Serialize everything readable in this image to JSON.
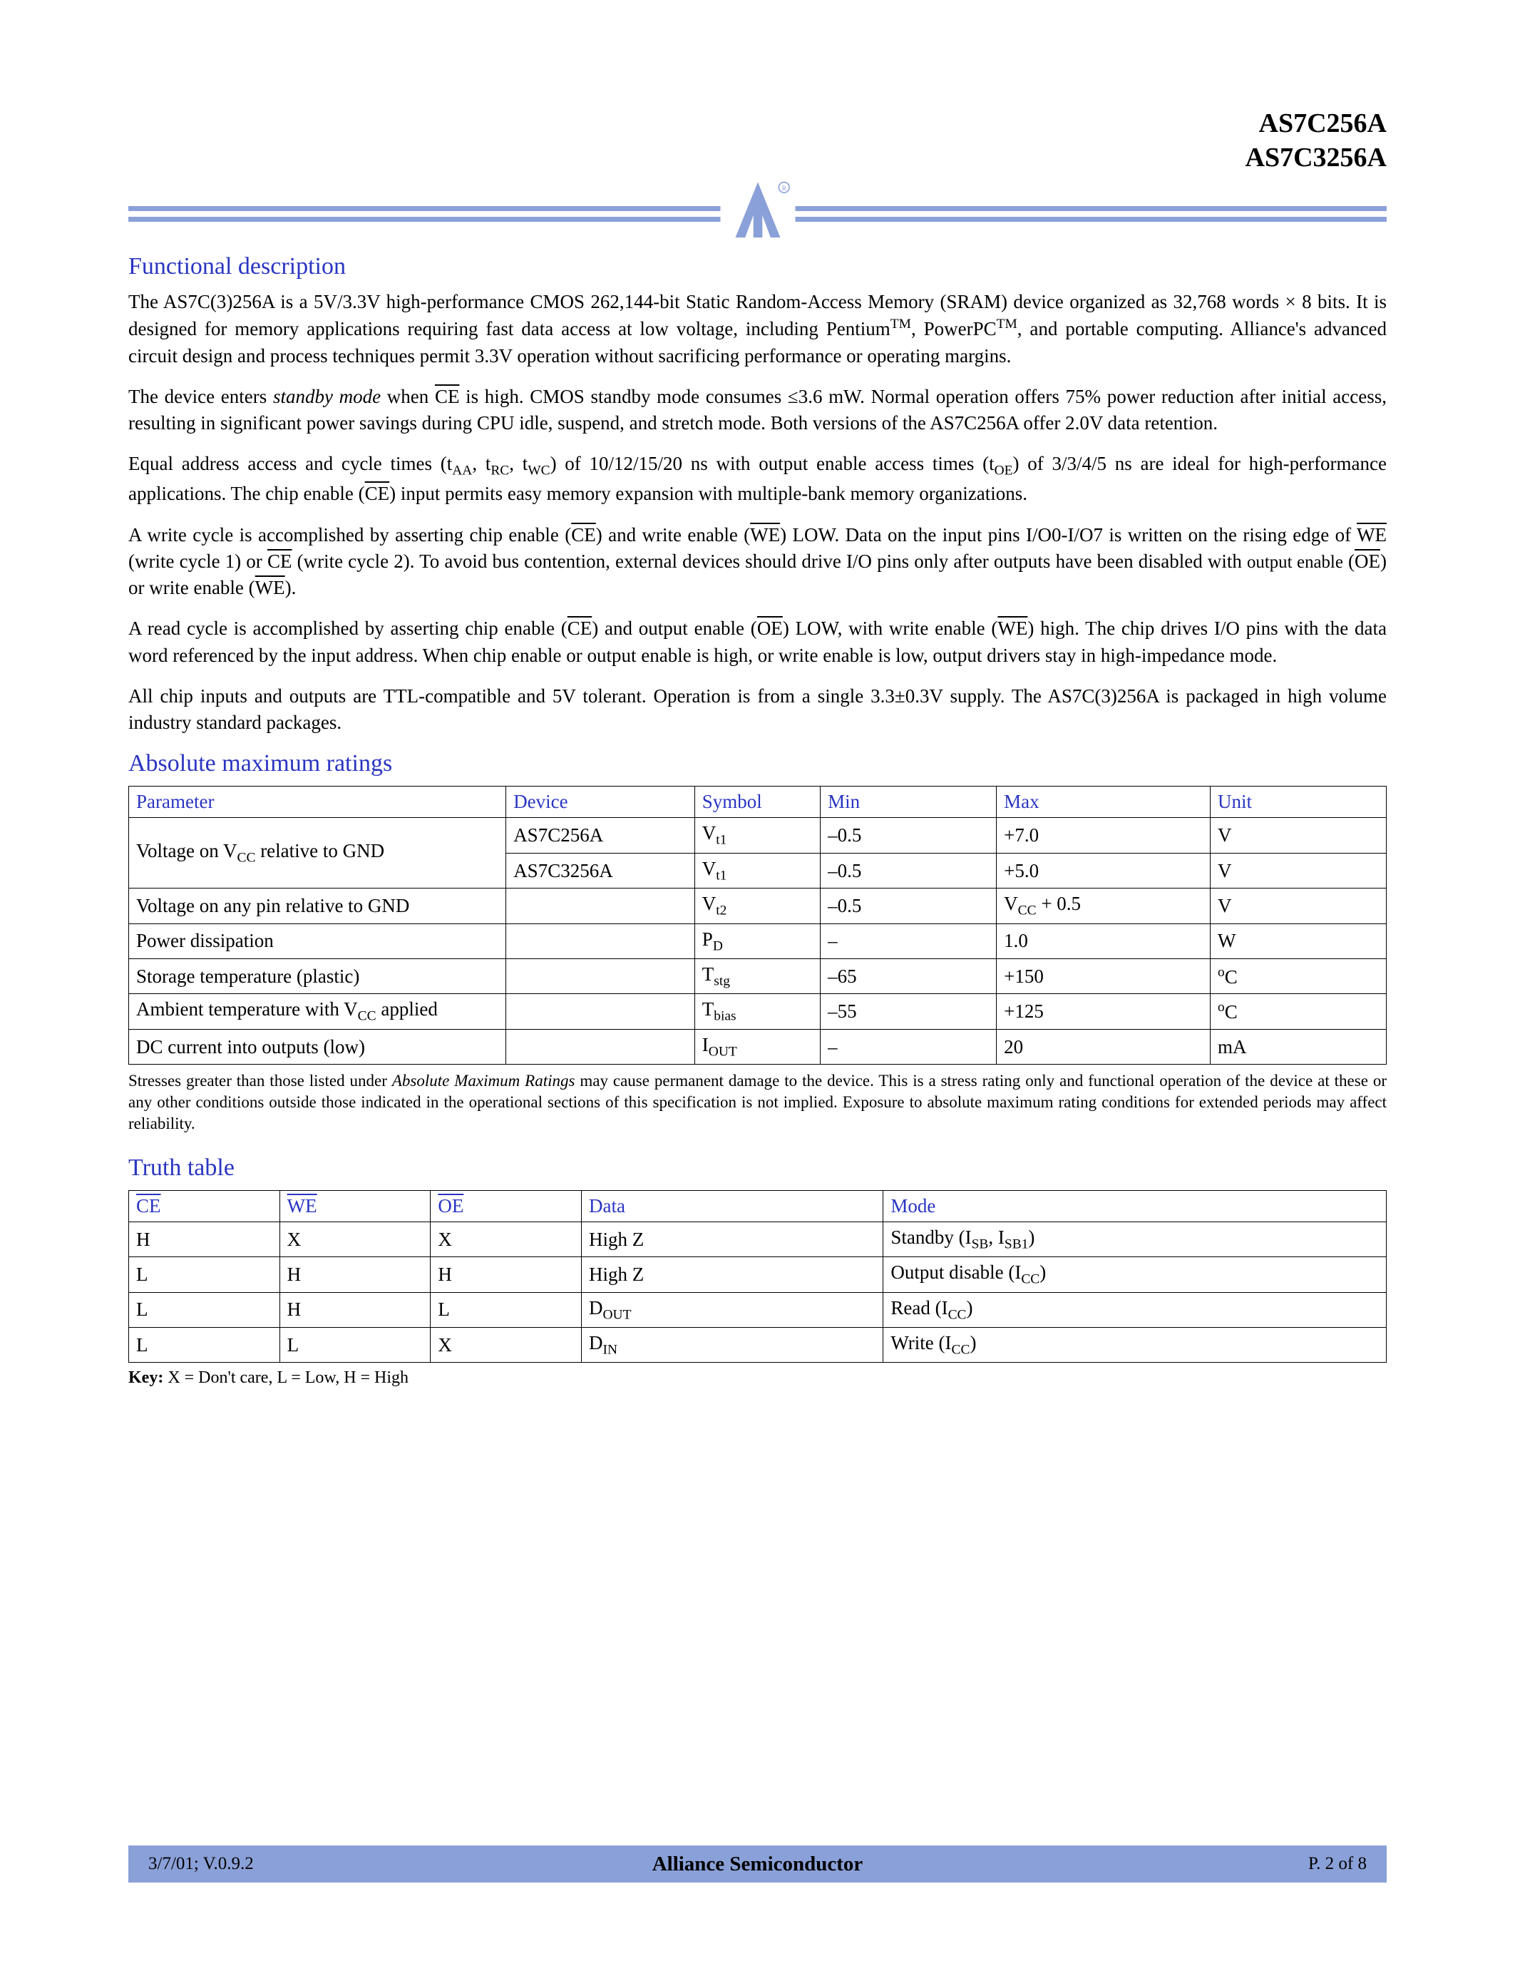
{
  "header": {
    "part1": "AS7C256A",
    "part2": "AS7C3256A"
  },
  "colors": {
    "accent": "#8aa0d8",
    "heading": "#2a35c2",
    "text": "#000000",
    "background": "#ffffff"
  },
  "sections": {
    "functional_desc": {
      "title": "Functional description",
      "p1a": "The AS7C(3)256A is a 5V/3.3V high-performance CMOS 262,144-bit Static Random-Access Memory (SRAM) device organized as 32,768 words × 8 bits. It is designed for memory applications requiring fast data access at low voltage, including Pentium",
      "p1b": ", PowerPC",
      "p1c": ", and portable computing. Alliance's advanced circuit design and process techniques permit 3.3V operation without sacrificing performance or operating margins.",
      "tm": "TM",
      "p2a": "The device enters ",
      "p2b": "standby mode",
      "p2c": " when ",
      "p2_ce": "CE",
      "p2d": " is high. CMOS standby mode consumes ≤3.6 mW.  Normal operation offers 75% power reduction after initial access, resulting in significant power savings during CPU idle, suspend, and stretch mode. Both versions of the AS7C256A offer 2.0V data retention.",
      "p3a": "Equal address access and cycle times (t",
      "p3_aa": "AA",
      "p3b": ", t",
      "p3_rc": "RC",
      "p3c": ", t",
      "p3_wc": "WC",
      "p3d": ") of 10/12/15/20 ns with output enable access times (t",
      "p3_oe": "OE",
      "p3e": ") of 3/3/4/5 ns are ideal for high-performance applications. The chip enable (",
      "p3_ce": "CE",
      "p3f": ") input permits easy memory expansion with multiple-bank memory organizations.",
      "p4a": "A write cycle is accomplished by asserting chip enable (",
      "p4_ce": "CE",
      "p4b": ") and write enable (",
      "p4_we": "WE",
      "p4c": ") LOW. Data on the input pins I/O0-I/O7 is written on the rising edge of ",
      "p4_we2": "WE",
      "p4d": " (write cycle 1) or ",
      "p4_ce2": "CE",
      "p4e": " (write cycle 2). To avoid bus contention, external devices should drive I/O pins only after outputs have been disabled with ",
      "p4f": "output enable",
      "p4g": " (",
      "p4_oe": "OE",
      "p4h": ") or write enable (",
      "p4_we3": "WE",
      "p4i": ").",
      "p5a": "A read cycle is accomplished by asserting chip enable (",
      "p5_ce": "CE",
      "p5b": ") and output enable (",
      "p5_oe": "OE",
      "p5c": ") LOW, with write enable (",
      "p5_we": "WE",
      "p5d": ") high. The chip drives I/O pins with the data word referenced by the input address. When chip enable or output enable is high, or write enable is low, output drivers stay in high-impedance mode.",
      "p6": "All chip inputs and outputs are TTL-compatible and 5V tolerant. Operation is from a single 3.3±0.3V supply. The AS7C(3)256A is packaged in high volume industry standard packages."
    },
    "abs_max": {
      "title": "Absolute maximum ratings",
      "columns": [
        "Parameter",
        "Device",
        "Symbol",
        "Min",
        "Max",
        "Unit"
      ],
      "col_widths": [
        "30%",
        "15%",
        "10%",
        "14%",
        "17%",
        "14%"
      ],
      "rows": [
        {
          "param_html": "Voltage on V<sub>CC</sub> relative to GND",
          "rowspan": 2,
          "device": "AS7C256A",
          "symbol_html": "V<sub>t1</sub>",
          "min": "–0.5",
          "max": "+7.0",
          "unit": "V"
        },
        {
          "device": "AS7C3256A",
          "symbol_html": "V<sub>t1</sub>",
          "min": "–0.5",
          "max": "+5.0",
          "unit": "V"
        },
        {
          "param_html": "Voltage on any pin relative to GND",
          "device": "",
          "symbol_html": "V<sub>t2</sub>",
          "min": "–0.5",
          "max_html": "V<sub>CC</sub> + 0.5",
          "unit": "V"
        },
        {
          "param_html": "Power dissipation",
          "device": "",
          "symbol_html": "P<sub>D</sub>",
          "min": "–",
          "max": "1.0",
          "unit": "W"
        },
        {
          "param_html": "Storage temperature (plastic)",
          "device": "",
          "symbol_html": "T<sub>stg</sub>",
          "min": "–65",
          "max": "+150",
          "unit_html": "<sup>o</sup>C"
        },
        {
          "param_html": "Ambient temperature with V<sub>CC</sub> applied",
          "device": "",
          "symbol_html": "T<sub>bias</sub>",
          "min": "–55",
          "max": "+125",
          "unit_html": "<sup>o</sup>C"
        },
        {
          "param_html": "DC current into outputs (low)",
          "device": "",
          "symbol_html": "I<sub>OUT</sub>",
          "min": "–",
          "max": "20",
          "unit": "mA"
        }
      ],
      "note_a": "Stresses greater than those listed under ",
      "note_b": "Absolute Maximum Ratings",
      "note_c": " may cause permanent damage to the device. This is a stress rating only and functional operation of the device at these or any other conditions outside those indicated in the operational sections of this specification is not implied. Exposure to absolute maximum rating conditions for extended periods may affect reliability."
    },
    "truth": {
      "title": "Truth table",
      "columns_html": [
        "<span class=\"ov\">CE</span>",
        "<span class=\"ov\">WE</span>",
        "<span class=\"ov\">OE</span>",
        "Data",
        "Mode"
      ],
      "col_widths": [
        "12%",
        "12%",
        "12%",
        "24%",
        "40%"
      ],
      "rows": [
        {
          "ce": "H",
          "we": "X",
          "oe": "X",
          "data": "High Z",
          "mode_html": "Standby (I<sub>SB</sub>, I<sub>SB1</sub>)"
        },
        {
          "ce": "L",
          "we": "H",
          "oe": "H",
          "data": "High Z",
          "mode_html": "Output disable (I<sub>CC</sub>)"
        },
        {
          "ce": "L",
          "we": "H",
          "oe": "L",
          "data_html": "D<sub>OUT</sub>",
          "mode_html": "Read (I<sub>CC</sub>)"
        },
        {
          "ce": "L",
          "we": "L",
          "oe": "X",
          "data_html": "D<sub>IN</sub>",
          "mode_html": "Write (I<sub>CC</sub>)"
        }
      ],
      "key_label": "Key:",
      "key_text": " X = Don't care, L = Low, H = High"
    }
  },
  "footer": {
    "left": "3/7/01; V.0.9.2",
    "center": "Alliance Semiconductor",
    "right": "P. 2 of 8"
  }
}
